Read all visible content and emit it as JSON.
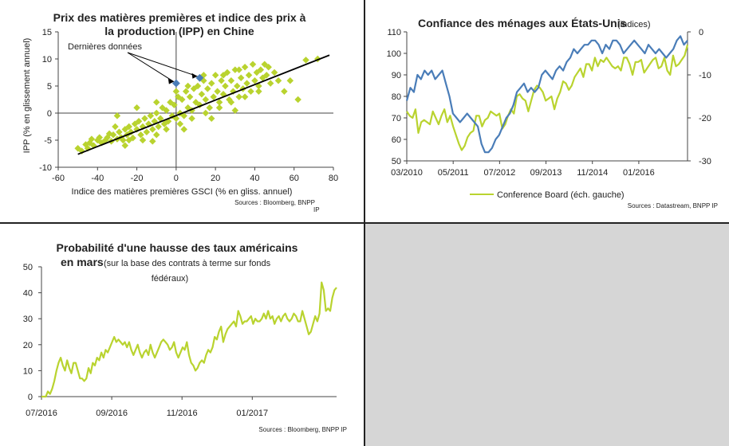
{
  "colors": {
    "green": "#b9d32f",
    "blue": "#4a7db8",
    "trend": "#000000",
    "empty_panel": "#d6d6d6"
  },
  "chart_data": [
    {
      "id": "ipp",
      "type": "scatter",
      "title_line1": "Prix des matières premières et indice des prix à",
      "title_line2": "la production (IPP) en Chine",
      "xlabel": "Indice des matières premières GSCI (% en gliss. annuel)",
      "ylabel": "IPP (% en glissement annuel)",
      "xlim": [
        -60,
        80
      ],
      "ylim": [
        -10,
        15
      ],
      "xticks": [
        "-60",
        "-40",
        "-20",
        "0",
        "20",
        "40",
        "60",
        "80"
      ],
      "yticks": [
        "-10",
        "-5",
        "0",
        "5",
        "10",
        "15"
      ],
      "annotation": "Dernières données",
      "source_line1": "Sources : Bloomberg, BNPP",
      "source_line2": "IP",
      "trend": [
        [
          -50,
          -7.6
        ],
        [
          78,
          10.7
        ]
      ],
      "points": [
        [
          -50,
          -6.5
        ],
        [
          -48,
          -7
        ],
        [
          -46,
          -5.8
        ],
        [
          -45,
          -6.5
        ],
        [
          -44,
          -5.5
        ],
        [
          -43,
          -4.8
        ],
        [
          -42,
          -6
        ],
        [
          -40,
          -5
        ],
        [
          -39,
          -4.5
        ],
        [
          -38,
          -5.5
        ],
        [
          -36,
          -5
        ],
        [
          -35,
          -4.5
        ],
        [
          -34,
          -3.8
        ],
        [
          -33,
          -5.2
        ],
        [
          -32,
          -4
        ],
        [
          -30,
          -4.8
        ],
        [
          -29,
          -3.5
        ],
        [
          -28,
          -4.5
        ],
        [
          -27,
          -5
        ],
        [
          -26,
          -3
        ],
        [
          -25,
          -4
        ],
        [
          -24,
          -2.5
        ],
        [
          -23,
          -3.5
        ],
        [
          -22,
          -4.6
        ],
        [
          -21,
          -2
        ],
        [
          -20,
          -3
        ],
        [
          -19,
          -1.5
        ],
        [
          -18,
          -4
        ],
        [
          -17,
          -2.5
        ],
        [
          -16,
          -1
        ],
        [
          -15,
          -3.5
        ],
        [
          -14,
          -2
        ],
        [
          -13,
          -0.5
        ],
        [
          -12,
          -3
        ],
        [
          -11,
          -1.5
        ],
        [
          -10,
          0
        ],
        [
          -9,
          -2.5
        ],
        [
          -8,
          -1
        ],
        [
          -7,
          1
        ],
        [
          -6,
          -2
        ],
        [
          -5,
          0.5
        ],
        [
          -4,
          -1.5
        ],
        [
          -3,
          2
        ],
        [
          -2,
          -0.5
        ],
        [
          -1,
          1.5
        ],
        [
          0,
          -1
        ],
        [
          1,
          3
        ],
        [
          2,
          0
        ],
        [
          3,
          2.5
        ],
        [
          4,
          -0.5
        ],
        [
          5,
          4
        ],
        [
          6,
          1
        ],
        [
          7,
          3
        ],
        [
          8,
          0.5
        ],
        [
          9,
          4.5
        ],
        [
          10,
          2
        ],
        [
          11,
          5
        ],
        [
          12,
          1.5
        ],
        [
          13,
          3.5
        ],
        [
          14,
          6
        ],
        [
          15,
          2.5
        ],
        [
          16,
          4.5
        ],
        [
          17,
          1
        ],
        [
          18,
          5.5
        ],
        [
          19,
          3
        ],
        [
          20,
          7
        ],
        [
          21,
          4
        ],
        [
          22,
          2
        ],
        [
          23,
          6
        ],
        [
          24,
          3.5
        ],
        [
          25,
          5
        ],
        [
          26,
          7.5
        ],
        [
          27,
          2.5
        ],
        [
          28,
          6
        ],
        [
          29,
          4
        ],
        [
          30,
          8
        ],
        [
          31,
          5
        ],
        [
          32,
          3
        ],
        [
          33,
          6.5
        ],
        [
          34,
          4.5
        ],
        [
          35,
          8.5
        ],
        [
          36,
          5.5
        ],
        [
          37,
          7
        ],
        [
          38,
          4
        ],
        [
          39,
          9
        ],
        [
          40,
          6
        ],
        [
          41,
          7.5
        ],
        [
          42,
          5
        ],
        [
          43,
          8
        ],
        [
          44,
          6.5
        ],
        [
          45,
          9
        ],
        [
          46,
          7
        ],
        [
          47,
          8.5
        ],
        [
          48,
          5.5
        ],
        [
          50,
          7.5
        ],
        [
          52,
          6
        ],
        [
          55,
          4
        ],
        [
          58,
          6
        ],
        [
          62,
          2.5
        ],
        [
          66,
          9.8
        ],
        [
          72,
          10
        ],
        [
          -31,
          -2.5
        ],
        [
          -24,
          -5
        ],
        [
          -17,
          -5
        ],
        [
          -10,
          -4
        ],
        [
          -5,
          -3
        ],
        [
          2,
          -2
        ],
        [
          8,
          -1
        ],
        [
          15,
          0
        ],
        [
          22,
          1
        ],
        [
          28,
          2
        ],
        [
          35,
          3
        ],
        [
          -30,
          -0.5
        ],
        [
          -20,
          1
        ],
        [
          -10,
          2
        ],
        [
          0,
          4
        ],
        [
          6,
          5
        ],
        [
          14,
          7
        ],
        [
          24,
          7
        ],
        [
          32,
          8
        ],
        [
          -26,
          -6
        ],
        [
          -12,
          -5.2
        ],
        [
          4,
          -3
        ],
        [
          18,
          -1
        ],
        [
          30,
          0.5
        ],
        [
          42,
          4
        ]
      ],
      "blue_points": [
        [
          0,
          5.5
        ],
        [
          12,
          6.5
        ]
      ]
    },
    {
      "id": "confiance",
      "type": "line",
      "title": "Confiance des ménages aux États-Unis",
      "title_note": "(indices)",
      "x_start": "03/2010",
      "x_end": "04/2017",
      "xticks": [
        "03/2010",
        "05/2011",
        "07/2012",
        "09/2013",
        "11/2014",
        "01/2016"
      ],
      "yticks_left": [
        "50",
        "60",
        "70",
        "80",
        "90",
        "100",
        "110"
      ],
      "yticks_right": [
        "-30",
        "-20",
        "-10",
        "0"
      ],
      "ylim_left": [
        50,
        110
      ],
      "ylim_right": [
        -30,
        0
      ],
      "legend": "Conference Board (éch. gauche)",
      "source": "Sources : Datastream, BNPP IP",
      "series": [
        {
          "name": "Conference Board (éch. gauche)",
          "axis": "left",
          "color": "green",
          "values": [
            73,
            71,
            70,
            74,
            63,
            68,
            69,
            68,
            67,
            73,
            70,
            67,
            71,
            74,
            68,
            71,
            66,
            62,
            58,
            55,
            57,
            61,
            63,
            64,
            71,
            71,
            66,
            69,
            70,
            73,
            72,
            71,
            72,
            65,
            67,
            71,
            74,
            72,
            80,
            81,
            79,
            78,
            73,
            78,
            83,
            85,
            84,
            82,
            78,
            79,
            80,
            74,
            79,
            82,
            87,
            86,
            83,
            85,
            89,
            91,
            93,
            89,
            95,
            95,
            92,
            98,
            94,
            97,
            96,
            98,
            96,
            94,
            93,
            94,
            92,
            98,
            98,
            95,
            90,
            96,
            96,
            97,
            91,
            93,
            95,
            97,
            98,
            93,
            94,
            98,
            92,
            90,
            99,
            94,
            95,
            97,
            99,
            104
          ]
        },
        {
          "name": "",
          "axis": "right",
          "color": "blue",
          "values": [
            -16,
            -13,
            -14,
            -10,
            -11,
            -9,
            -10,
            -9,
            -11,
            -10,
            -9,
            -12,
            -15,
            -19,
            -20,
            -21,
            -20,
            -19,
            -20,
            -21,
            -22,
            -26,
            -28,
            -28,
            -27,
            -25,
            -24,
            -22,
            -20,
            -19,
            -17,
            -14,
            -13,
            -12,
            -14,
            -13,
            -14,
            -13,
            -10,
            -9,
            -10,
            -11,
            -9,
            -8,
            -9,
            -7,
            -6,
            -4,
            -5,
            -4,
            -3,
            -3,
            -2,
            -2,
            -3,
            -5,
            -3,
            -4,
            -2,
            -2,
            -3,
            -5,
            -4,
            -3,
            -2,
            -3,
            -4,
            -5,
            -3,
            -4,
            -5,
            -4,
            -5,
            -6,
            -5,
            -4,
            -2,
            -1,
            -3,
            -2
          ]
        }
      ]
    },
    {
      "id": "probabilite",
      "type": "line",
      "title_line1": "Probabilité d'une hausse  des taux américains",
      "title_line2": "en mars",
      "subtitle_line1": "(sur la base des contrats à  terme sur fonds",
      "subtitle_line2": "fédéraux)",
      "xticks": [
        "07/2016",
        "09/2016",
        "11/2016",
        "01/2017"
      ],
      "yticks": [
        "0",
        "10",
        "20",
        "30",
        "40",
        "50"
      ],
      "ylim": [
        0,
        50
      ],
      "source": "Sources : Bloomberg, BNPP IP",
      "series": [
        {
          "name": "",
          "color": "green",
          "values": [
            0,
            0,
            0,
            2,
            1,
            3,
            6,
            10,
            13,
            15,
            12,
            10,
            14,
            11,
            9,
            13,
            13,
            10,
            7,
            7,
            6,
            7,
            11,
            9,
            13,
            12,
            15,
            14,
            17,
            15,
            18,
            17,
            19,
            21,
            23,
            21,
            22,
            21,
            20,
            21,
            19,
            21,
            18,
            16,
            18,
            20,
            17,
            15,
            17,
            18,
            16,
            20,
            17,
            15,
            17,
            19,
            21,
            22,
            21,
            20,
            18,
            19,
            21,
            17,
            15,
            17,
            19,
            18,
            21,
            16,
            13,
            12,
            10,
            11,
            13,
            14,
            13,
            16,
            18,
            17,
            19,
            23,
            22,
            25,
            27,
            21,
            24,
            26,
            27,
            28,
            29,
            27,
            33,
            31,
            28,
            29,
            29,
            30,
            31,
            28,
            30,
            29,
            29,
            30,
            32,
            30,
            33,
            30,
            31,
            28,
            30,
            31,
            29,
            31,
            32,
            30,
            29,
            30,
            32,
            31,
            29,
            29,
            33,
            30,
            27,
            24,
            25,
            28,
            31,
            29,
            32,
            44,
            41,
            33,
            34,
            33,
            38,
            41,
            42
          ]
        }
      ]
    }
  ]
}
